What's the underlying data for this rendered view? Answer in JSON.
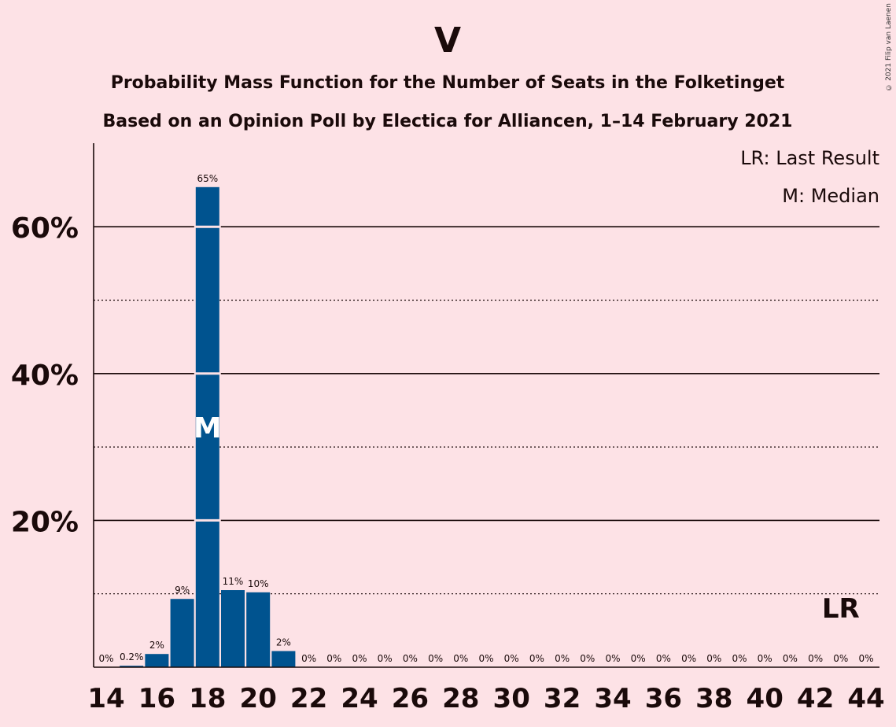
{
  "chart_data": {
    "type": "bar",
    "title": "V",
    "subtitle_line1": "Probability Mass Function for the Number of Seats in the Folketinget",
    "subtitle_line2": "Based on an Opinion Poll by Electica for Alliancen, 1–14 February 2021",
    "copyright": "© 2021 Filip van Laenen",
    "legend": [
      "LR: Last Result",
      "M: Median"
    ],
    "legend_position": "top-right",
    "xlim": [
      14,
      44
    ],
    "ylim": [
      0,
      70
    ],
    "x_ticks": [
      "14",
      "16",
      "18",
      "20",
      "22",
      "24",
      "26",
      "28",
      "30",
      "32",
      "34",
      "36",
      "38",
      "40",
      "42",
      "44"
    ],
    "y_ticks": [
      {
        "value": 20,
        "label": "20%",
        "solid": true
      },
      {
        "value": 40,
        "label": "40%",
        "solid": true
      },
      {
        "value": 60,
        "label": "60%",
        "solid": true
      }
    ],
    "dotted_gridlines": [
      10,
      30,
      50
    ],
    "seats": [
      14,
      15,
      16,
      17,
      18,
      19,
      20,
      21,
      22,
      23,
      24,
      25,
      26,
      27,
      28,
      29,
      30,
      31,
      32,
      33,
      34,
      35,
      36,
      37,
      38,
      39,
      40,
      41,
      42,
      43,
      44
    ],
    "values": [
      0,
      0.2,
      1.8,
      9.3,
      65.4,
      10.5,
      10.2,
      2.2,
      0,
      0,
      0,
      0,
      0,
      0,
      0,
      0,
      0,
      0,
      0,
      0,
      0,
      0,
      0,
      0,
      0,
      0,
      0,
      0,
      0,
      0,
      0
    ],
    "labels": [
      "0%",
      "0.2%",
      "2%",
      "9%",
      "65%",
      "11%",
      "10%",
      "2%",
      "0%",
      "0%",
      "0%",
      "0%",
      "0%",
      "0%",
      "0%",
      "0%",
      "0%",
      "0%",
      "0%",
      "0%",
      "0%",
      "0%",
      "0%",
      "0%",
      "0%",
      "0%",
      "0%",
      "0%",
      "0%",
      "0%",
      "0%"
    ],
    "median_seat": 18,
    "median_label": "M",
    "last_result_seat": 43,
    "last_result_label": "LR",
    "bar_color": "#00538f",
    "background_color": "#fde2e6"
  }
}
